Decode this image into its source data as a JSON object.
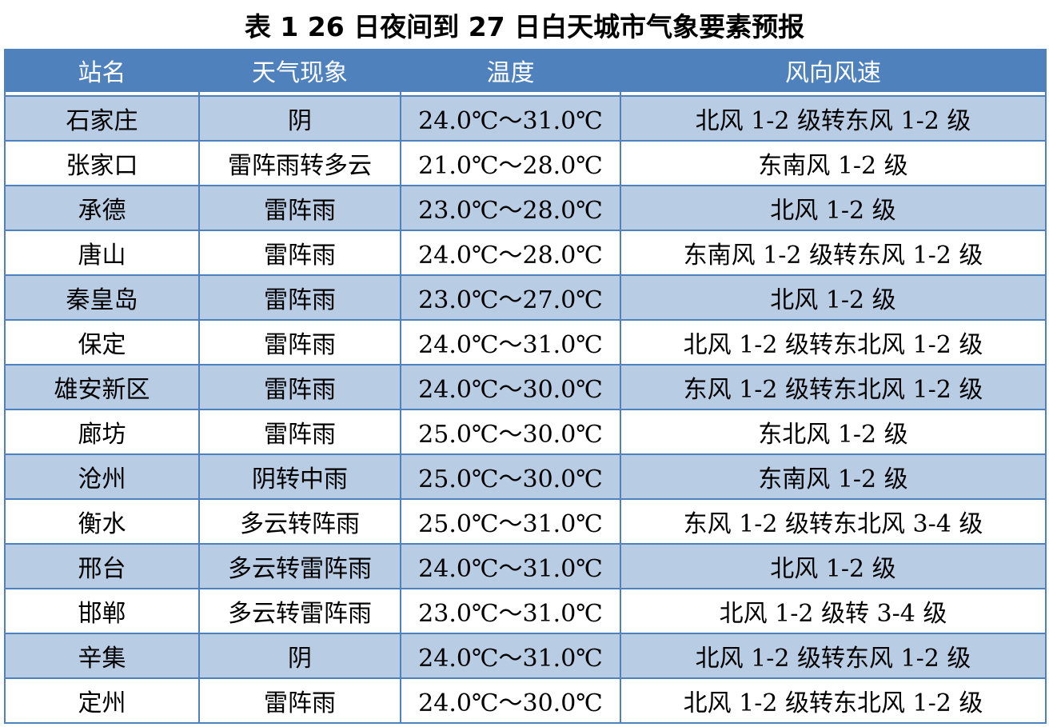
{
  "title": "表 1  26 日夜间到 27 日白天城市气象要素预报",
  "headers": [
    "站名",
    "天气现象",
    "温度",
    "风向风速"
  ],
  "colors": {
    "header_bg": "#4f81bd",
    "row_alt_bg": "#b8cce4",
    "border": "#4f81bd"
  },
  "rows": [
    [
      "石家庄",
      "阴",
      "24.0℃～31.0℃",
      "北风 1-2 级转东风 1-2 级"
    ],
    [
      "张家口",
      "雷阵雨转多云",
      "21.0℃～28.0℃",
      "东南风 1-2 级"
    ],
    [
      "承德",
      "雷阵雨",
      "23.0℃～28.0℃",
      "北风 1-2 级"
    ],
    [
      "唐山",
      "雷阵雨",
      "24.0℃～28.0℃",
      "东南风 1-2 级转东风 1-2 级"
    ],
    [
      "秦皇岛",
      "雷阵雨",
      "23.0℃～27.0℃",
      "北风 1-2 级"
    ],
    [
      "保定",
      "雷阵雨",
      "24.0℃～31.0℃",
      "北风 1-2 级转东北风 1-2 级"
    ],
    [
      "雄安新区",
      "雷阵雨",
      "24.0℃～30.0℃",
      "东风 1-2 级转东北风 1-2 级"
    ],
    [
      "廊坊",
      "雷阵雨",
      "25.0℃～30.0℃",
      "东北风 1-2 级"
    ],
    [
      "沧州",
      "阴转中雨",
      "25.0℃～30.0℃",
      "东南风 1-2 级"
    ],
    [
      "衡水",
      "多云转阵雨",
      "25.0℃～31.0℃",
      "东风 1-2 级转东北风 3-4 级"
    ],
    [
      "邢台",
      "多云转雷阵雨",
      "24.0℃～31.0℃",
      "北风 1-2 级"
    ],
    [
      "邯郸",
      "多云转雷阵雨",
      "23.0℃～31.0℃",
      "北风 1-2 级转 3-4 级"
    ],
    [
      "辛集",
      "阴",
      "24.0℃～31.0℃",
      "北风 1-2 级转东风 1-2 级"
    ],
    [
      "定州",
      "雷阵雨",
      "24.0℃～30.0℃",
      "北风 1-2 级转东北风 1-2 级"
    ]
  ]
}
